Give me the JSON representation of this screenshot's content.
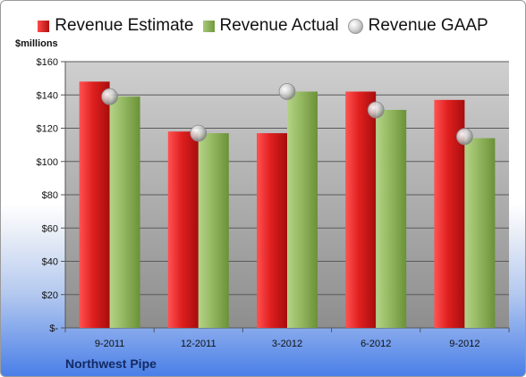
{
  "legend": {
    "estimate": "Revenue Estimate",
    "actual": "Revenue Actual",
    "gaap": "Revenue GAAP"
  },
  "unit_label": "$millions",
  "company": "Northwest Pipe",
  "colors": {
    "estimate": "#d11f1f",
    "actual": "#8db05a",
    "gaap": "#c8c8c8",
    "plot_top": "#cdcdcd",
    "plot_bottom": "#8f8f8f"
  },
  "chart_data": {
    "type": "bar",
    "categories": [
      "9-2011",
      "12-2011",
      "3-2012",
      "6-2012",
      "9-2012"
    ],
    "series": [
      {
        "name": "Revenue Estimate",
        "values": [
          148,
          118,
          117,
          142,
          137
        ]
      },
      {
        "name": "Revenue Actual",
        "values": [
          139,
          117,
          142,
          131,
          114
        ]
      },
      {
        "name": "Revenue GAAP",
        "values": [
          139,
          117,
          142,
          131,
          115
        ],
        "marker": "circle"
      }
    ],
    "ylim": [
      0,
      160
    ],
    "yticks": [
      {
        "value": 0,
        "label": "$-"
      },
      {
        "value": 20,
        "label": "$20"
      },
      {
        "value": 40,
        "label": "$40"
      },
      {
        "value": 60,
        "label": "$60"
      },
      {
        "value": 80,
        "label": "$80"
      },
      {
        "value": 100,
        "label": "$100"
      },
      {
        "value": 120,
        "label": "$120"
      },
      {
        "value": 140,
        "label": "$140"
      },
      {
        "value": 160,
        "label": "$160"
      }
    ],
    "ylabel": "$millions",
    "title": "",
    "grid": true,
    "legend_position": "top"
  }
}
